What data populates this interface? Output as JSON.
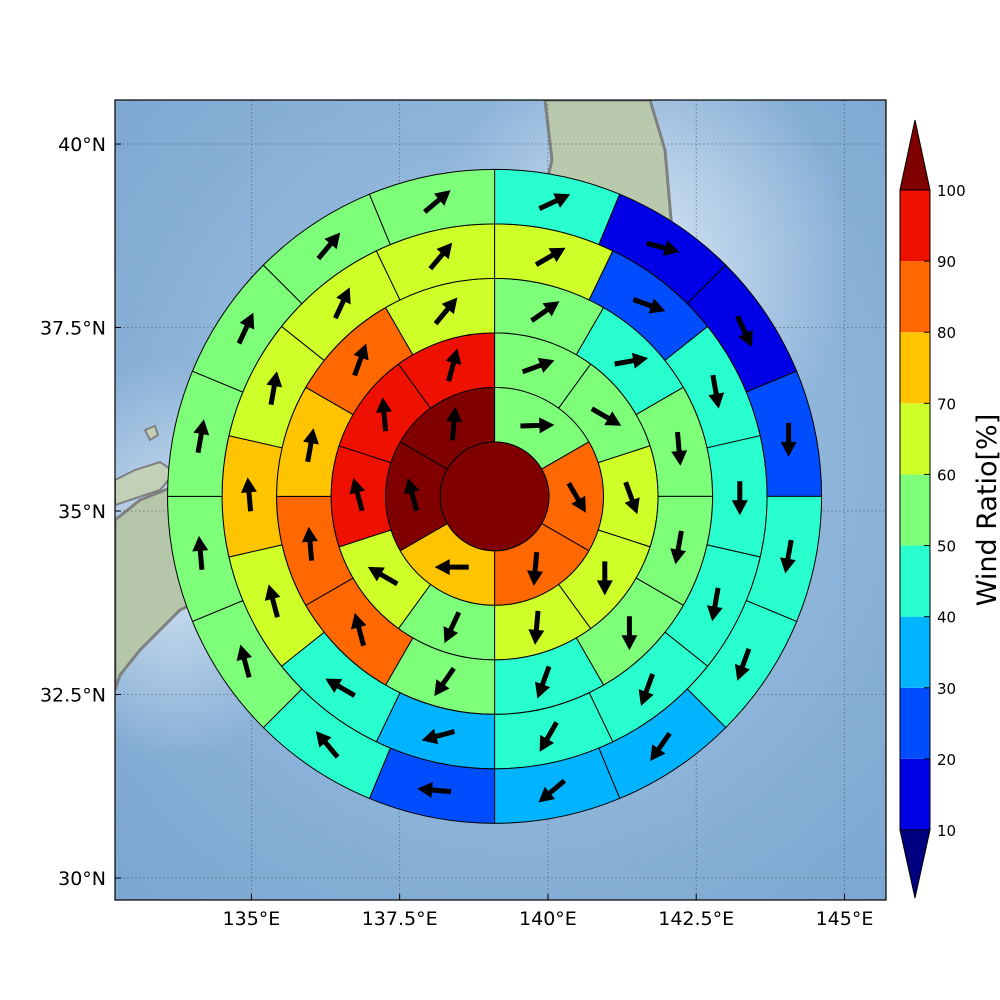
{
  "chart_data": {
    "type": "heatmap",
    "colorbar_label": "Wind Ratio[%]",
    "colorbar_levels": [
      10,
      20,
      30,
      40,
      50,
      60,
      70,
      80,
      90,
      100
    ],
    "colorbar_tick_labels": [
      "10",
      "20",
      "30",
      "40",
      "50",
      "60",
      "70",
      "80",
      "90",
      "100"
    ],
    "colorbar_colors": [
      "#000080",
      "#0000e6",
      "#004dff",
      "#00b4ff",
      "#29ffce",
      "#7dff7a",
      "#ceff29",
      "#ffc400",
      "#ff6800",
      "#ee1000",
      "#800000"
    ],
    "colorbar_extend": "both",
    "x_ticks": [
      135,
      137.5,
      140,
      142.5,
      145
    ],
    "x_tick_labels": [
      "135°E",
      "137.5°E",
      "140°E",
      "142.5°E",
      "145°E"
    ],
    "y_ticks": [
      30,
      32.5,
      35,
      37.5,
      40
    ],
    "y_tick_labels": [
      "30°N",
      "32.5°N",
      "35°N",
      "37.5°N",
      "40°N"
    ],
    "xlim": [
      132.7,
      145.7
    ],
    "ylim": [
      29.7,
      40.6
    ],
    "grid": true,
    "center": {
      "lon": 139.1,
      "lat": 35.2
    },
    "ring_count": 6,
    "rings": [
      {
        "ring": 1,
        "sectors": [
          {
            "wind_ratio": 100,
            "direction_deg": 0
          }
        ]
      },
      {
        "ring": 2,
        "sectors": [
          {
            "wind_ratio": 55,
            "direction_deg": 88
          },
          {
            "wind_ratio": 85,
            "direction_deg": 150
          },
          {
            "wind_ratio": 85,
            "direction_deg": 185
          },
          {
            "wind_ratio": 75,
            "direction_deg": 270
          },
          {
            "wind_ratio": 100,
            "direction_deg": 345
          },
          {
            "wind_ratio": 100,
            "direction_deg": 5
          }
        ]
      },
      {
        "ring": 3,
        "sectors": [
          {
            "wind_ratio": 55,
            "direction_deg": 70
          },
          {
            "wind_ratio": 55,
            "direction_deg": 120
          },
          {
            "wind_ratio": 65,
            "direction_deg": 160
          },
          {
            "wind_ratio": 65,
            "direction_deg": 180
          },
          {
            "wind_ratio": 65,
            "direction_deg": 185
          },
          {
            "wind_ratio": 55,
            "direction_deg": 205
          },
          {
            "wind_ratio": 65,
            "direction_deg": 300
          },
          {
            "wind_ratio": 95,
            "direction_deg": 345
          },
          {
            "wind_ratio": 95,
            "direction_deg": 355
          },
          {
            "wind_ratio": 95,
            "direction_deg": 15
          }
        ]
      },
      {
        "ring": 4,
        "sectors": [
          {
            "wind_ratio": 55,
            "direction_deg": 55
          },
          {
            "wind_ratio": 45,
            "direction_deg": 80
          },
          {
            "wind_ratio": 55,
            "direction_deg": 175
          },
          {
            "wind_ratio": 55,
            "direction_deg": 190
          },
          {
            "wind_ratio": 55,
            "direction_deg": 180
          },
          {
            "wind_ratio": 45,
            "direction_deg": 200
          },
          {
            "wind_ratio": 55,
            "direction_deg": 215
          },
          {
            "wind_ratio": 85,
            "direction_deg": 345
          },
          {
            "wind_ratio": 85,
            "direction_deg": 355
          },
          {
            "wind_ratio": 75,
            "direction_deg": 10
          },
          {
            "wind_ratio": 85,
            "direction_deg": 20
          },
          {
            "wind_ratio": 65,
            "direction_deg": 40
          }
        ]
      },
      {
        "ring": 5,
        "sectors": [
          {
            "wind_ratio": 65,
            "direction_deg": 60
          },
          {
            "wind_ratio": 25,
            "direction_deg": 110
          },
          {
            "wind_ratio": 45,
            "direction_deg": 170
          },
          {
            "wind_ratio": 45,
            "direction_deg": 180
          },
          {
            "wind_ratio": 45,
            "direction_deg": 190
          },
          {
            "wind_ratio": 45,
            "direction_deg": 200
          },
          {
            "wind_ratio": 45,
            "direction_deg": 210
          },
          {
            "wind_ratio": 35,
            "direction_deg": 255
          },
          {
            "wind_ratio": 45,
            "direction_deg": 300
          },
          {
            "wind_ratio": 65,
            "direction_deg": 345
          },
          {
            "wind_ratio": 75,
            "direction_deg": 355
          },
          {
            "wind_ratio": 65,
            "direction_deg": 10
          },
          {
            "wind_ratio": 65,
            "direction_deg": 25
          },
          {
            "wind_ratio": 65,
            "direction_deg": 40
          }
        ]
      },
      {
        "ring": 6,
        "sectors": [
          {
            "wind_ratio": 45,
            "direction_deg": 65
          },
          {
            "wind_ratio": 15,
            "direction_deg": 105
          },
          {
            "wind_ratio": 15,
            "direction_deg": 155
          },
          {
            "wind_ratio": 25,
            "direction_deg": 180
          },
          {
            "wind_ratio": 45,
            "direction_deg": 190
          },
          {
            "wind_ratio": 45,
            "direction_deg": 200
          },
          {
            "wind_ratio": 35,
            "direction_deg": 215
          },
          {
            "wind_ratio": 35,
            "direction_deg": 230
          },
          {
            "wind_ratio": 25,
            "direction_deg": 275
          },
          {
            "wind_ratio": 45,
            "direction_deg": 320
          },
          {
            "wind_ratio": 55,
            "direction_deg": 345
          },
          {
            "wind_ratio": 55,
            "direction_deg": 355
          },
          {
            "wind_ratio": 55,
            "direction_deg": 10
          },
          {
            "wind_ratio": 55,
            "direction_deg": 25
          },
          {
            "wind_ratio": 55,
            "direction_deg": 40
          },
          {
            "wind_ratio": 55,
            "direction_deg": 50
          }
        ]
      }
    ]
  }
}
